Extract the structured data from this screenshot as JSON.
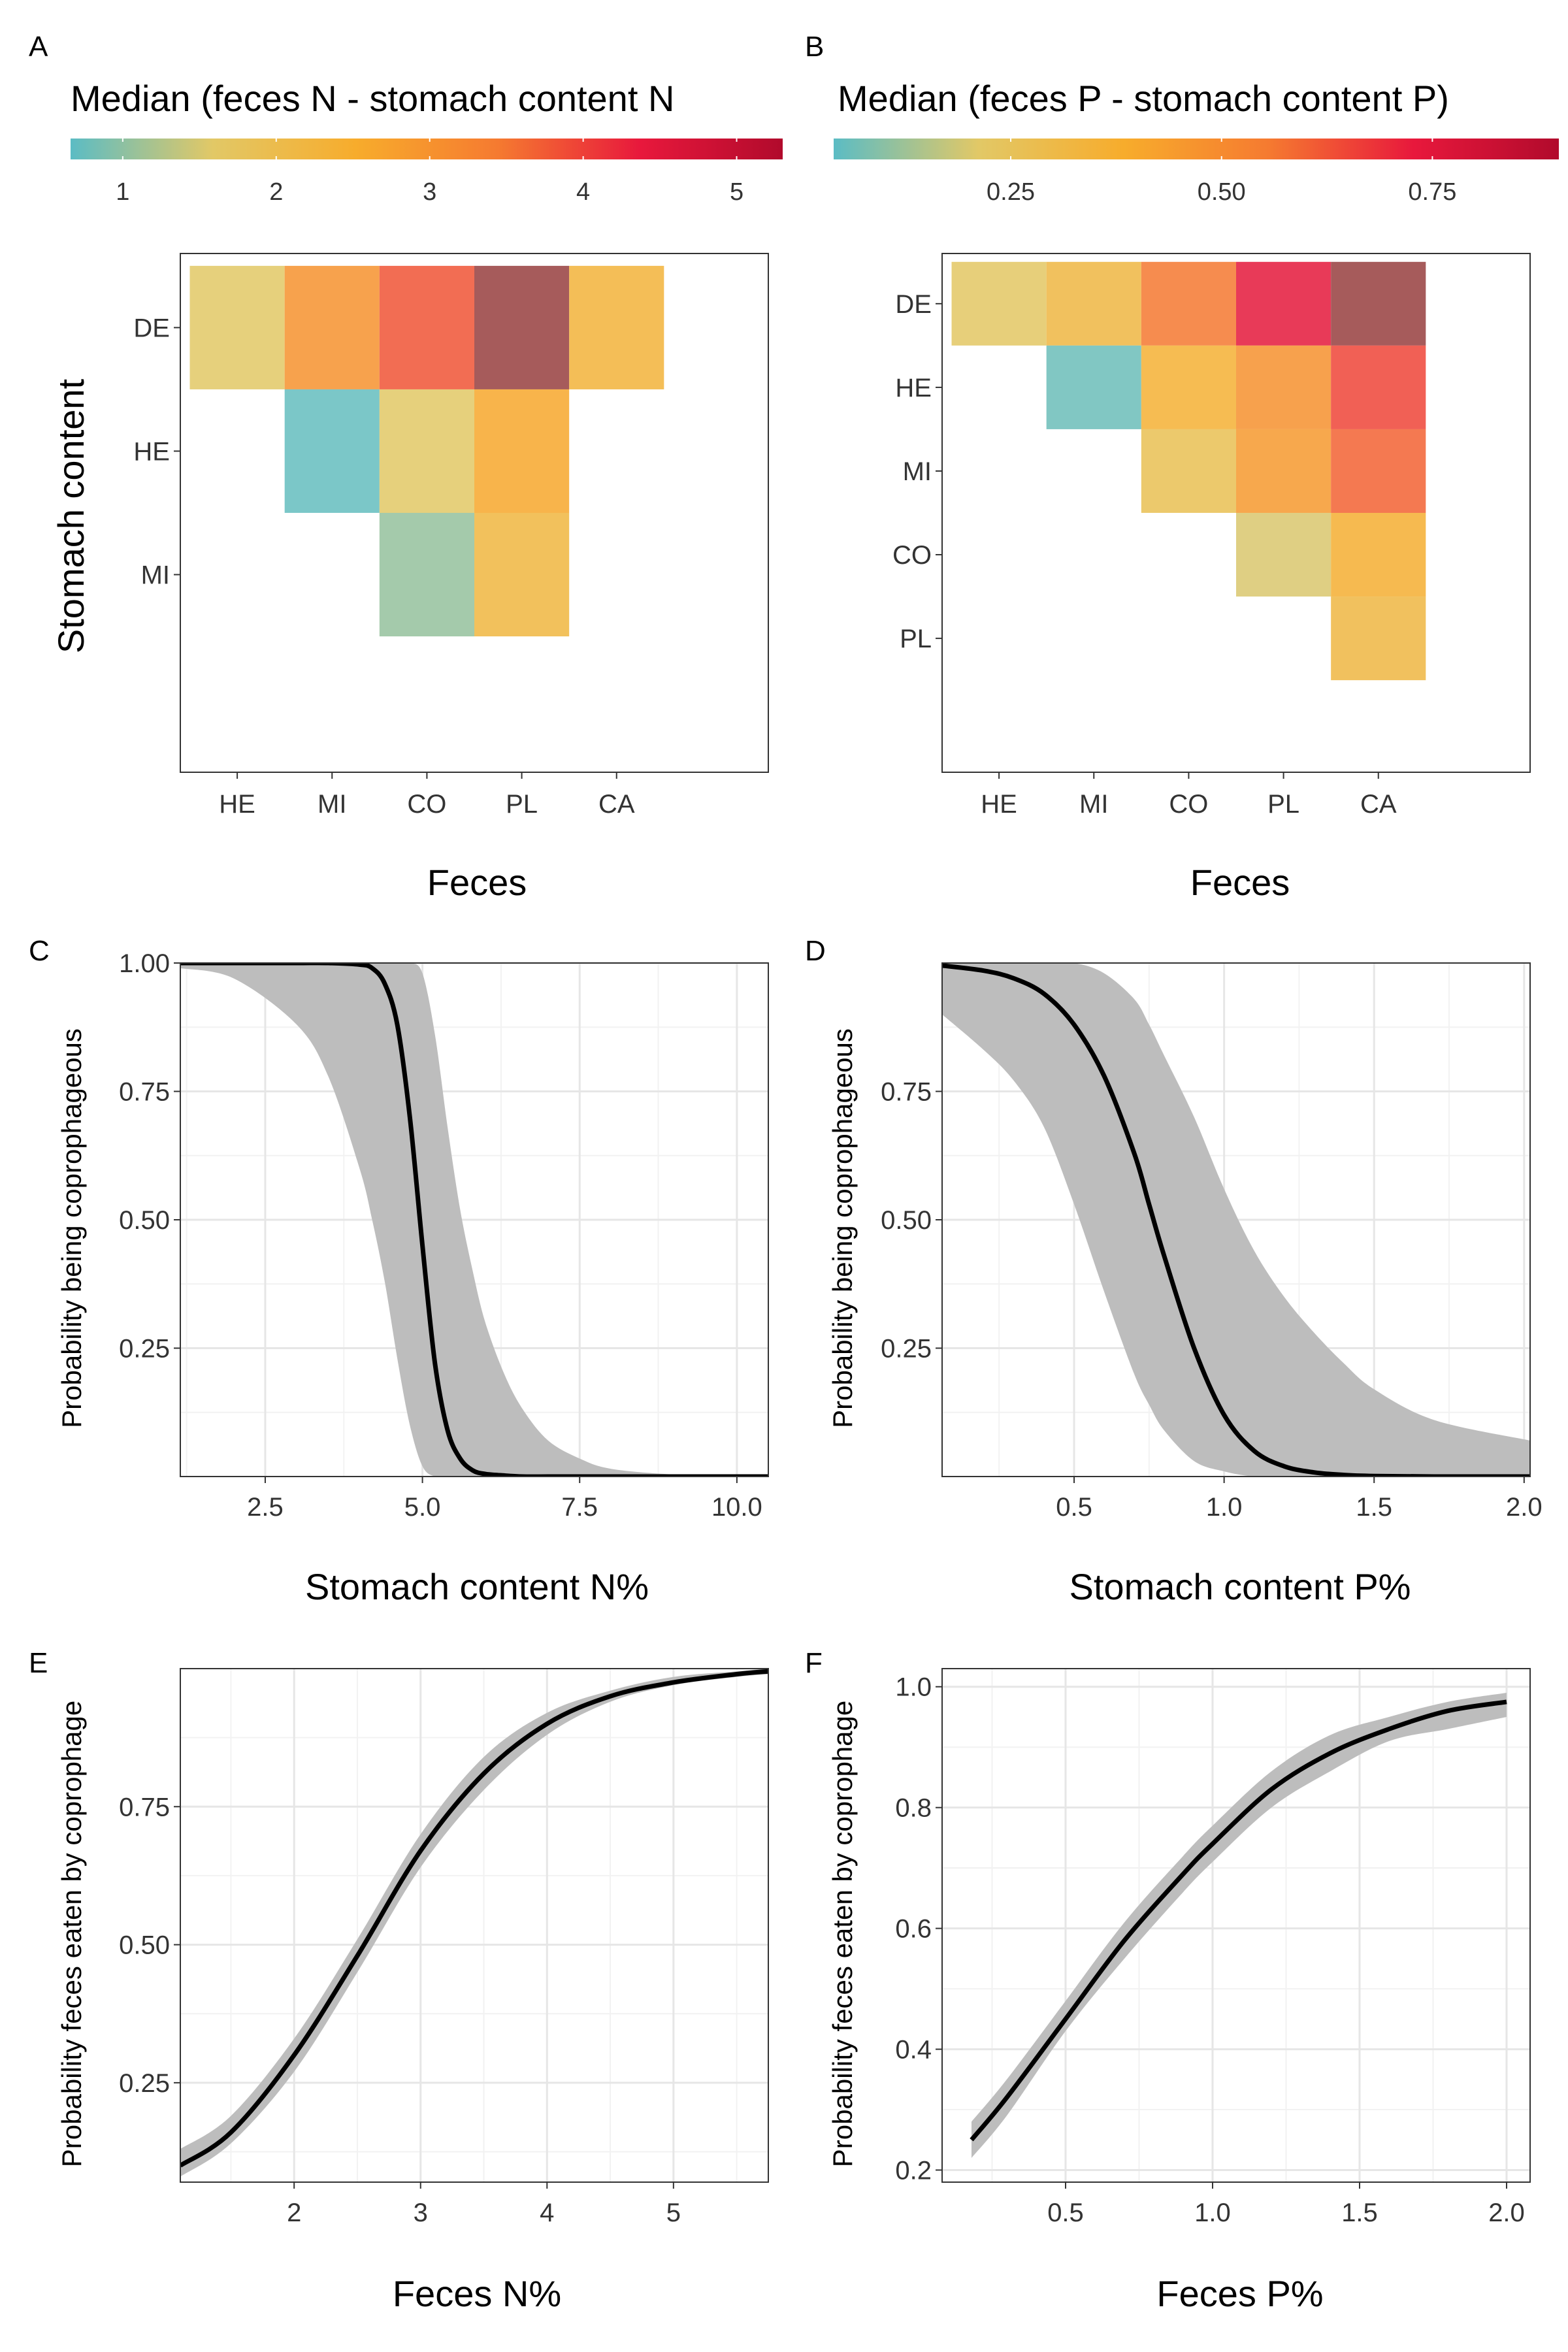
{
  "colors": {
    "scale_stops": [
      "#5bbcc4",
      "#e2c866",
      "#f7ac2c",
      "#f57a30",
      "#e8183c",
      "#b10a2c"
    ],
    "curve": "#000000",
    "ribbon": "#bdbdbd",
    "grid": "#ebebeb",
    "axis": "#333333"
  },
  "chart_data": [
    {
      "panel": "A",
      "type": "heatmap",
      "legend_title": "Median (feces N - stomach content N",
      "legend_ticks": [
        "1",
        "2",
        "3",
        "4",
        "5"
      ],
      "color_range": [
        0.66,
        5.3
      ],
      "x_categories": [
        "HE",
        "MI",
        "CO",
        "PL",
        "CA"
      ],
      "y_categories": [
        "DE",
        "HE",
        "MI"
      ],
      "xlabel": "Feces",
      "ylabel": "Stomach content",
      "cells": [
        {
          "x": "HE",
          "y": "DE",
          "value": 1.6
        },
        {
          "x": "MI",
          "y": "DE",
          "value": 3.0
        },
        {
          "x": "CO",
          "y": "DE",
          "value": 3.8
        },
        {
          "x": "PL",
          "y": "DE",
          "value": 5.5
        },
        {
          "x": "CA",
          "y": "DE",
          "value": 2.3
        },
        {
          "x": "MI",
          "y": "HE",
          "value": 0.72
        },
        {
          "x": "CO",
          "y": "HE",
          "value": 1.6
        },
        {
          "x": "PL",
          "y": "HE",
          "value": 2.6
        },
        {
          "x": "CO",
          "y": "MI",
          "value": 1.05
        },
        {
          "x": "PL",
          "y": "MI",
          "value": 2.2
        }
      ]
    },
    {
      "panel": "B",
      "type": "heatmap",
      "legend_title": "Median (feces P - stomach content P)",
      "legend_ticks": [
        "0.25",
        "0.50",
        "0.75"
      ],
      "legend_tick_values": [
        0.25,
        0.5,
        0.75
      ],
      "color_range": [
        0.04,
        0.9
      ],
      "x_categories": [
        "HE",
        "MI",
        "CO",
        "PL",
        "CA"
      ],
      "y_categories": [
        "DE",
        "HE",
        "MI",
        "CO",
        "PL"
      ],
      "xlabel": "Feces",
      "ylabel": "",
      "cells": [
        {
          "x": "HE",
          "y": "DE",
          "value": 0.22
        },
        {
          "x": "MI",
          "y": "DE",
          "value": 0.32
        },
        {
          "x": "CO",
          "y": "DE",
          "value": 0.56
        },
        {
          "x": "PL",
          "y": "DE",
          "value": 0.74
        },
        {
          "x": "CA",
          "y": "DE",
          "value": 0.95
        },
        {
          "x": "MI",
          "y": "HE",
          "value": 0.06
        },
        {
          "x": "CO",
          "y": "HE",
          "value": 0.36
        },
        {
          "x": "PL",
          "y": "HE",
          "value": 0.48
        },
        {
          "x": "CA",
          "y": "HE",
          "value": 0.65
        },
        {
          "x": "CO",
          "y": "MI",
          "value": 0.27
        },
        {
          "x": "PL",
          "y": "MI",
          "value": 0.45
        },
        {
          "x": "CA",
          "y": "MI",
          "value": 0.6
        },
        {
          "x": "PL",
          "y": "CO",
          "value": 0.2
        },
        {
          "x": "CA",
          "y": "CO",
          "value": 0.37
        },
        {
          "x": "CA",
          "y": "PL",
          "value": 0.32
        }
      ]
    },
    {
      "panel": "C",
      "type": "line",
      "xlabel": "Stomach content N%",
      "ylabel": "Probability being coprophageous",
      "xlim": [
        1.15,
        10.5
      ],
      "ylim": [
        0.0,
        1.0
      ],
      "xticks": [
        2.5,
        5.0,
        7.5,
        10.0
      ],
      "xtick_labels": [
        "2.5",
        "5.0",
        "7.5",
        "10.0"
      ],
      "yticks": [
        0.25,
        0.5,
        0.75,
        1.0
      ],
      "ytick_labels": [
        "0.25",
        "0.50",
        "0.75",
        "1.00"
      ],
      "x": [
        1.15,
        2.0,
        3.0,
        3.5,
        4.0,
        4.2,
        4.4,
        4.6,
        4.8,
        5.0,
        5.2,
        5.4,
        5.6,
        5.8,
        6.0,
        6.3,
        6.6,
        7.0,
        7.5,
        8.0,
        9.0,
        10.0,
        10.5
      ],
      "y": [
        1.0,
        1.0,
        1.0,
        1.0,
        0.997,
        0.99,
        0.96,
        0.88,
        0.7,
        0.45,
        0.22,
        0.09,
        0.035,
        0.012,
        0.005,
        0.002,
        0.0,
        0.0,
        0.0,
        0.0,
        0.0,
        0.0,
        0.0
      ],
      "lower": [
        0.99,
        0.97,
        0.88,
        0.78,
        0.6,
        0.5,
        0.38,
        0.23,
        0.1,
        0.02,
        0.0,
        0.0,
        0.0,
        0.0,
        0.0,
        0.0,
        0.0,
        0.0,
        0.0,
        0.0,
        0.0,
        0.0,
        0.0
      ],
      "upper": [
        1.0,
        1.0,
        1.0,
        1.0,
        1.0,
        1.0,
        1.0,
        1.0,
        1.0,
        0.98,
        0.86,
        0.68,
        0.52,
        0.4,
        0.3,
        0.2,
        0.13,
        0.07,
        0.035,
        0.015,
        0.004,
        0.001,
        0.0
      ]
    },
    {
      "panel": "D",
      "type": "line",
      "xlabel": "Stomach content P%",
      "ylabel": "Probability being coprophageous",
      "xlim": [
        0.06,
        2.02
      ],
      "ylim": [
        0.0,
        1.0
      ],
      "xticks": [
        0.5,
        1.0,
        1.5,
        2.0
      ],
      "xtick_labels": [
        "0.5",
        "1.0",
        "1.5",
        "2.0"
      ],
      "yticks": [
        0.25,
        0.5,
        0.75
      ],
      "ytick_labels": [
        "0.25",
        "0.50",
        "0.75"
      ],
      "x": [
        0.06,
        0.2,
        0.3,
        0.4,
        0.5,
        0.6,
        0.7,
        0.75,
        0.8,
        0.9,
        1.0,
        1.1,
        1.2,
        1.3,
        1.4,
        1.5,
        1.7,
        2.02
      ],
      "y": [
        0.995,
        0.985,
        0.97,
        0.94,
        0.88,
        0.78,
        0.63,
        0.53,
        0.43,
        0.25,
        0.12,
        0.05,
        0.02,
        0.008,
        0.003,
        0.001,
        0.0,
        0.0
      ],
      "lower": [
        0.9,
        0.83,
        0.77,
        0.68,
        0.53,
        0.36,
        0.2,
        0.14,
        0.09,
        0.03,
        0.01,
        0.0,
        0.0,
        0.0,
        0.0,
        0.0,
        0.0,
        0.0
      ],
      "upper": [
        1.0,
        1.0,
        1.0,
        1.0,
        1.0,
        0.98,
        0.93,
        0.88,
        0.82,
        0.7,
        0.56,
        0.44,
        0.35,
        0.28,
        0.22,
        0.17,
        0.11,
        0.07
      ]
    },
    {
      "panel": "E",
      "type": "line",
      "xlabel": "Feces N%",
      "ylabel": "Probability feces eaten by coprophage",
      "xlim": [
        1.1,
        5.75
      ],
      "ylim": [
        0.07,
        1.0
      ],
      "xticks": [
        2,
        3,
        4,
        5
      ],
      "xtick_labels": [
        "2",
        "3",
        "4",
        "5"
      ],
      "yticks": [
        0.25,
        0.5,
        0.75
      ],
      "ytick_labels": [
        "0.25",
        "0.50",
        "0.75"
      ],
      "x": [
        1.1,
        1.5,
        2.0,
        2.5,
        3.0,
        3.5,
        4.0,
        4.5,
        5.0,
        5.5,
        5.75
      ],
      "y": [
        0.1,
        0.16,
        0.3,
        0.48,
        0.67,
        0.81,
        0.9,
        0.95,
        0.975,
        0.99,
        0.995
      ],
      "lower": [
        0.08,
        0.14,
        0.27,
        0.45,
        0.64,
        0.78,
        0.88,
        0.94,
        0.97,
        0.985,
        0.99
      ],
      "upper": [
        0.13,
        0.19,
        0.33,
        0.51,
        0.7,
        0.84,
        0.92,
        0.96,
        0.985,
        0.995,
        1.0
      ]
    },
    {
      "panel": "F",
      "type": "line",
      "xlabel": "Feces P%",
      "ylabel": "Probability feces eaten by coprophage",
      "xlim": [
        0.08,
        2.08
      ],
      "ylim": [
        0.18,
        1.03
      ],
      "xticks": [
        0.5,
        1.0,
        1.5,
        2.0
      ],
      "xtick_labels": [
        "0.5",
        "1.0",
        "1.5",
        "2.0"
      ],
      "yticks": [
        0.2,
        0.4,
        0.6,
        0.8,
        1.0
      ],
      "ytick_labels": [
        "0.2",
        "0.4",
        "0.6",
        "0.8",
        "1.0"
      ],
      "x": [
        0.18,
        0.3,
        0.5,
        0.7,
        0.9,
        1.0,
        1.2,
        1.4,
        1.6,
        1.8,
        2.0
      ],
      "y": [
        0.25,
        0.32,
        0.45,
        0.58,
        0.69,
        0.74,
        0.83,
        0.89,
        0.93,
        0.96,
        0.975
      ],
      "lower": [
        0.22,
        0.29,
        0.43,
        0.55,
        0.66,
        0.71,
        0.8,
        0.86,
        0.91,
        0.93,
        0.95
      ],
      "upper": [
        0.28,
        0.35,
        0.48,
        0.61,
        0.72,
        0.77,
        0.86,
        0.92,
        0.95,
        0.975,
        0.99
      ]
    }
  ]
}
